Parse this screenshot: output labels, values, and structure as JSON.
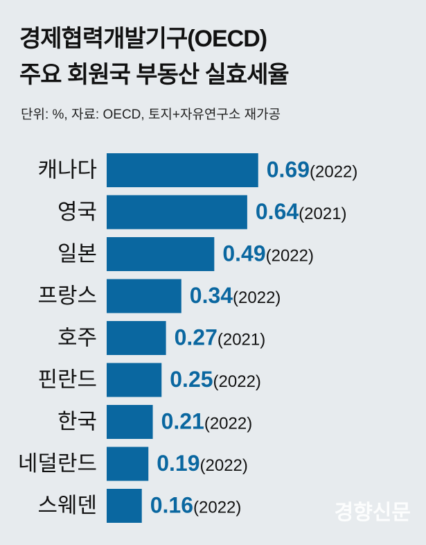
{
  "chart_data": {
    "type": "bar",
    "orientation": "horizontal",
    "title": "경제협력개발기구(OECD) 주요 회원국 부동산 실효세율",
    "title_lines": [
      "경제협력개발기구(OECD)",
      "주요 회원국 부동산 실효세율"
    ],
    "subtitle": "단위: %, 자료:  OECD, 토지+자유연구소 재가공",
    "categories": [
      "캐나다",
      "영국",
      "일본",
      "프랑스",
      "호주",
      "핀란드",
      "한국",
      "네덜란드",
      "스웨덴"
    ],
    "values": [
      0.69,
      0.64,
      0.49,
      0.34,
      0.27,
      0.25,
      0.21,
      0.19,
      0.16
    ],
    "value_labels": [
      "0.69",
      "0.64",
      "0.49",
      "0.34",
      "0.27",
      "0.25",
      "0.21",
      "0.19",
      "0.16"
    ],
    "years": [
      "(2022)",
      "(2021)",
      "(2022)",
      "(2022)",
      "(2021)",
      "(2022)",
      "(2022)",
      "(2022)",
      "(2022)"
    ],
    "xlim": [
      0,
      0.8
    ],
    "grid": false,
    "xlabel": "",
    "ylabel": ""
  },
  "colors": {
    "bar": "#0a67a0",
    "value": "#0a67a0",
    "background": "#e7ebee"
  },
  "watermark": "경향신문"
}
